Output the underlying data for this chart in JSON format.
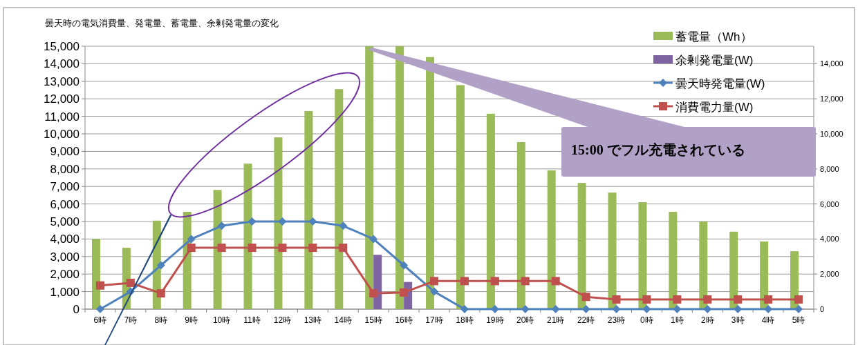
{
  "chart_data": {
    "type": "bar",
    "title": "曇天時の電気消費量、発電量、蓄電量、余剰発電量の変化",
    "categories": [
      "6時",
      "7時",
      "8時",
      "9時",
      "10時",
      "11時",
      "12時",
      "13時",
      "14時",
      "15時",
      "16時",
      "17時",
      "18時",
      "19時",
      "20時",
      "21時",
      "22時",
      "23時",
      "0時",
      "1時",
      "2時",
      "3時",
      "4時",
      "5時"
    ],
    "series": [
      {
        "name": "蓄電量（Wh）",
        "color": "#9bbb59",
        "values": [
          4000,
          3500,
          5050,
          5550,
          6800,
          8300,
          9800,
          11300,
          12550,
          15000,
          15000,
          14380,
          12780,
          11150,
          9530,
          7920,
          7200,
          6650,
          6100,
          5550,
          5000,
          4420,
          3860,
          3300
        ]
      },
      {
        "name": "余剰発電量(W)",
        "color": "#8064a2",
        "values": [
          null,
          null,
          null,
          null,
          null,
          null,
          null,
          null,
          null,
          3100,
          1550,
          null,
          null,
          null,
          null,
          null,
          null,
          null,
          null,
          null,
          null,
          null,
          null,
          null
        ]
      },
      {
        "name": "曇天時発電量(W)",
        "type": "line",
        "marker": "diamond",
        "color": "#4f81bd",
        "values": [
          0,
          1000,
          2500,
          4000,
          4750,
          5000,
          5000,
          5000,
          4750,
          4000,
          2500,
          1000,
          0,
          0,
          0,
          0,
          0,
          0,
          0,
          0,
          0,
          0,
          0,
          0
        ]
      },
      {
        "name": "消費電力量(W)",
        "type": "line",
        "marker": "square",
        "color": "#c0504d",
        "values": [
          1350,
          1500,
          900,
          3500,
          3500,
          3500,
          3500,
          3500,
          3500,
          900,
          950,
          1600,
          1600,
          1600,
          1600,
          1600,
          700,
          550,
          550,
          550,
          550,
          550,
          550,
          550
        ]
      }
    ],
    "ylim": [
      0,
      15000
    ],
    "yticks": [
      {
        "value": 0,
        "label": "0"
      },
      {
        "value": 1000,
        "label": "1,000"
      },
      {
        "value": 2000,
        "label": "2,000"
      },
      {
        "value": 3000,
        "label": "3,000"
      },
      {
        "value": 4000,
        "label": "4,000"
      },
      {
        "value": 5000,
        "label": "5,000"
      },
      {
        "value": 6000,
        "label": "6,000"
      },
      {
        "value": 7000,
        "label": "7,000"
      },
      {
        "value": 8000,
        "label": "8,000"
      },
      {
        "value": 9000,
        "label": "9,000"
      },
      {
        "value": 10000,
        "label": "10,000"
      },
      {
        "value": 11000,
        "label": "11,000"
      },
      {
        "value": 12000,
        "label": "12,000"
      },
      {
        "value": 13000,
        "label": "13,000"
      },
      {
        "value": 14000,
        "label": "14,000"
      },
      {
        "value": 15000,
        "label": "15,000"
      }
    ],
    "y2lim": [
      0,
      15000
    ],
    "y2ticks": [
      {
        "value": 0,
        "label": "0"
      },
      {
        "value": 2000,
        "label": "2,000"
      },
      {
        "value": 4000,
        "label": "4,000"
      },
      {
        "value": 6000,
        "label": "6,000"
      },
      {
        "value": 8000,
        "label": "8,000"
      },
      {
        "value": 10000,
        "label": "10,000"
      },
      {
        "value": 12000,
        "label": "12,000"
      },
      {
        "value": 14000,
        "label": "14,000"
      }
    ],
    "annotations": [
      {
        "text": "15:00 でフル充電されている",
        "x": "15時",
        "y": 15000
      }
    ],
    "grid": "y",
    "legend": "top right"
  }
}
